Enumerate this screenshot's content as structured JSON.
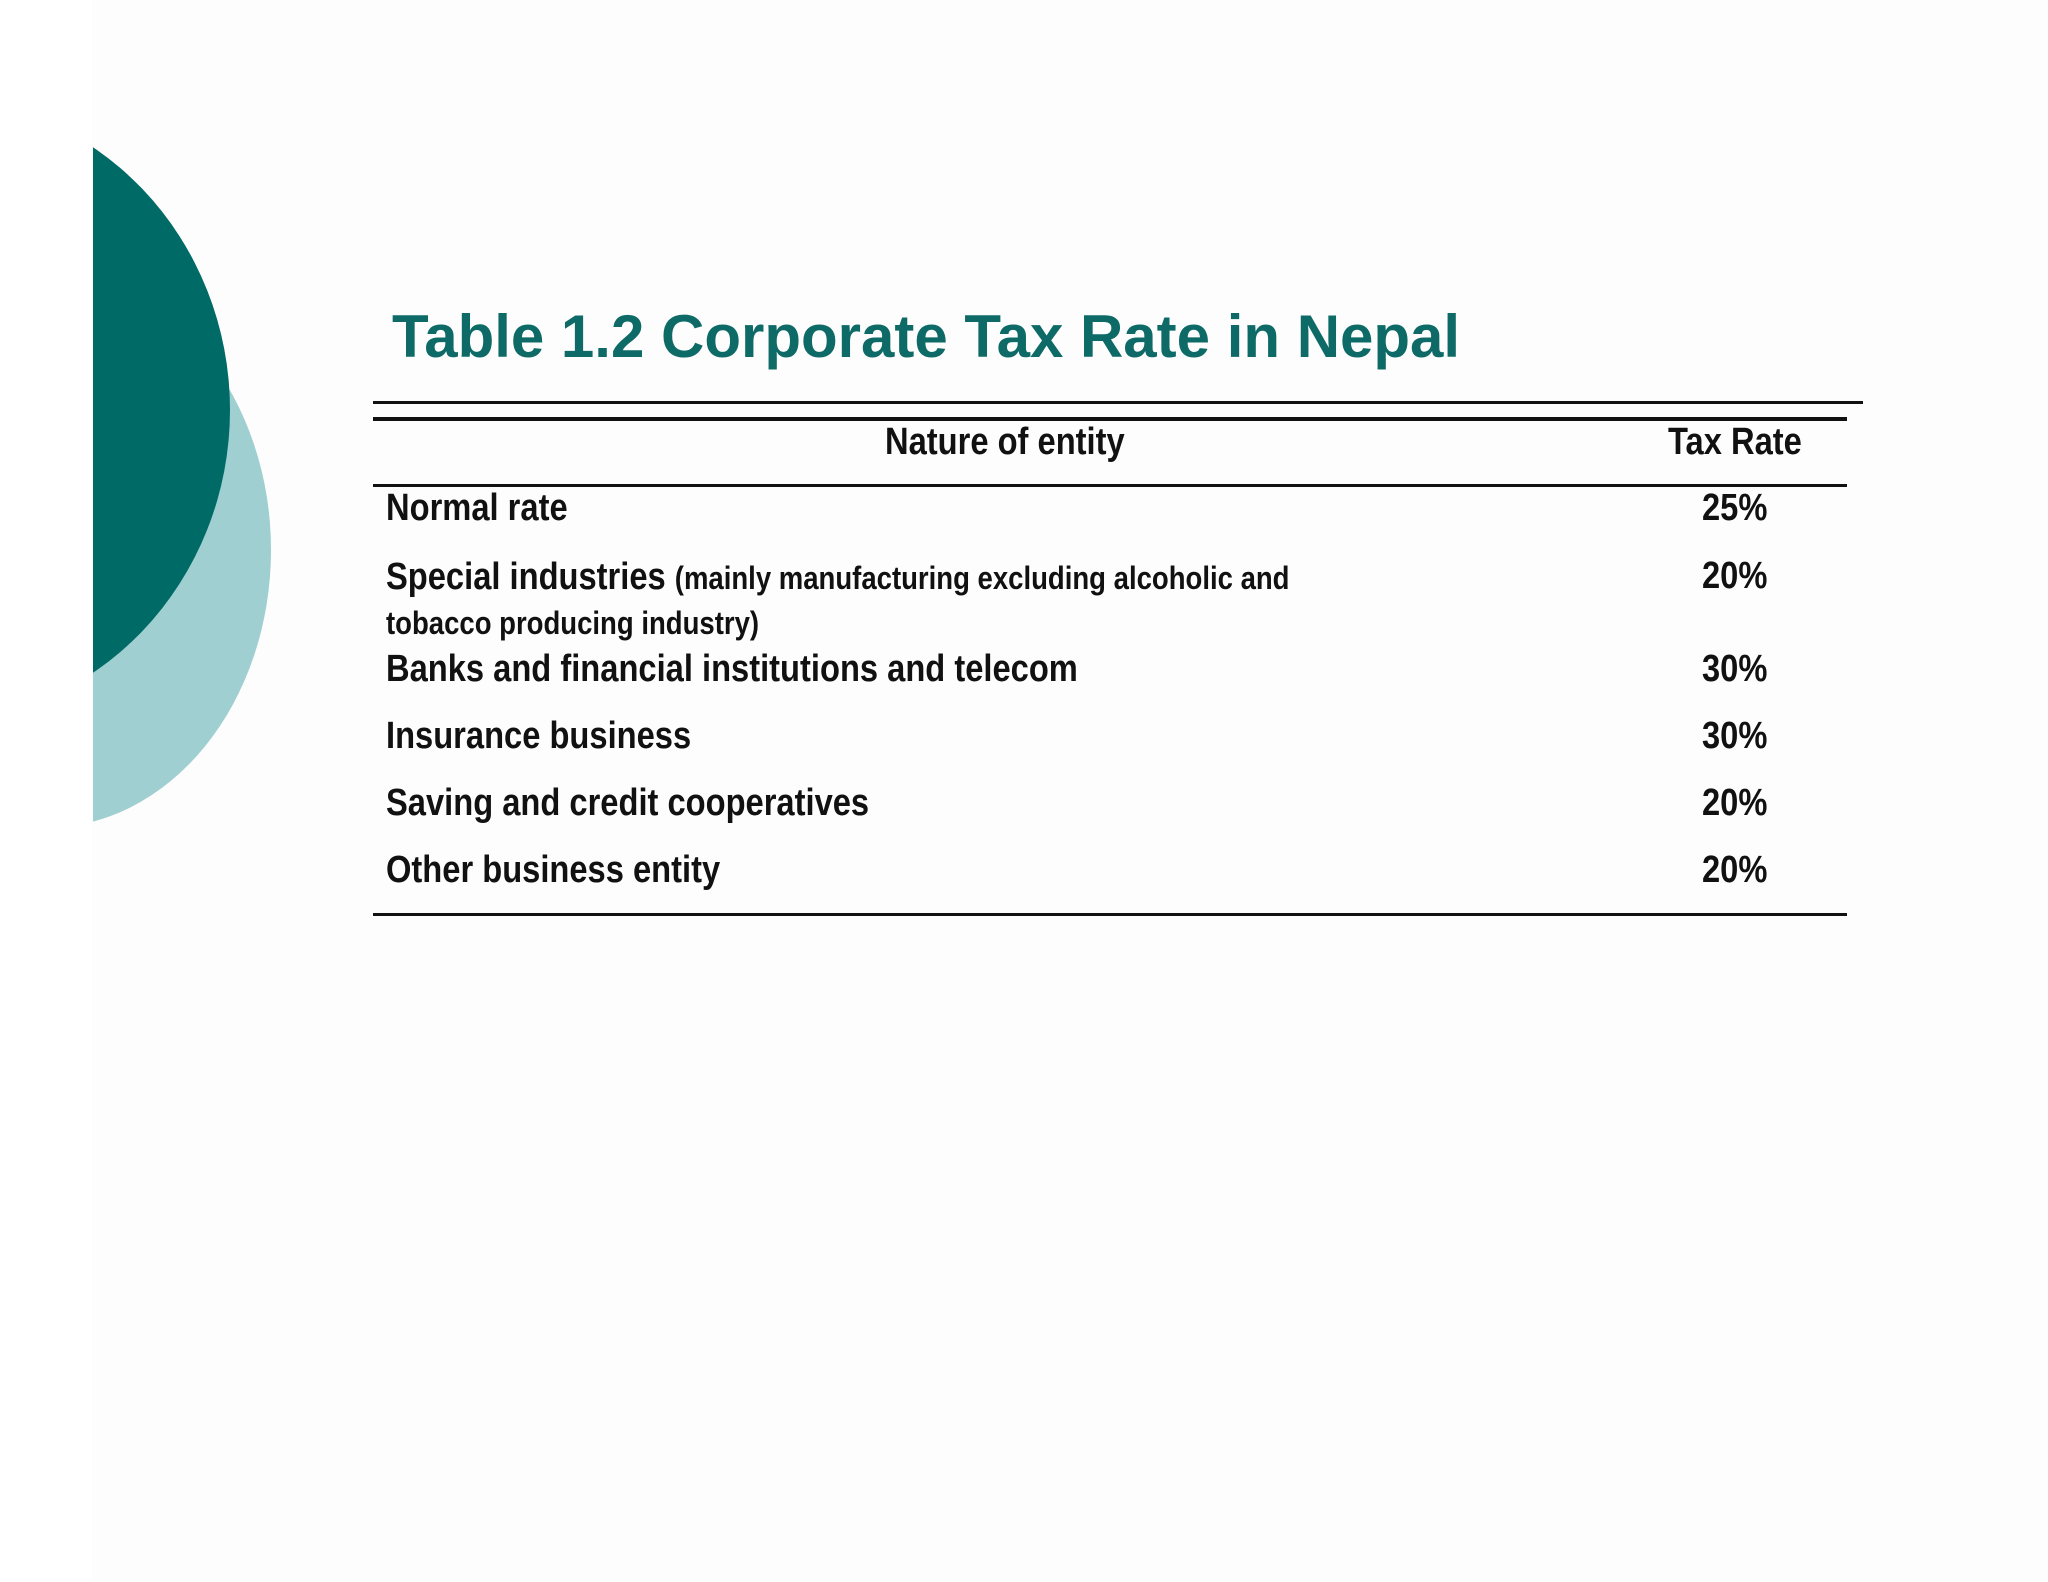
{
  "title": "Table 1.2 Corporate Tax Rate in Nepal",
  "table": {
    "headers": {
      "entity": "Nature of entity",
      "rate": "Tax Rate"
    },
    "rows": [
      {
        "entity": "Normal rate",
        "note": "",
        "rate": "25%"
      },
      {
        "entity": "Special industries",
        "note": "(mainly manufacturing excluding alcoholic and tobacco producing industry)",
        "rate": "20%"
      },
      {
        "entity": "Banks and financial institutions and telecom",
        "note": "",
        "rate": "30%"
      },
      {
        "entity": "Insurance business",
        "note": "",
        "rate": "30%"
      },
      {
        "entity": "Saving and credit cooperatives",
        "note": "",
        "rate": "20%"
      },
      {
        "entity": "Other business entity",
        "note": "",
        "rate": "20%"
      }
    ]
  },
  "colors": {
    "title": "#0e6a66",
    "decor_dark": "#006a66",
    "decor_light": "#9fcfd0",
    "rule": "#111111"
  }
}
